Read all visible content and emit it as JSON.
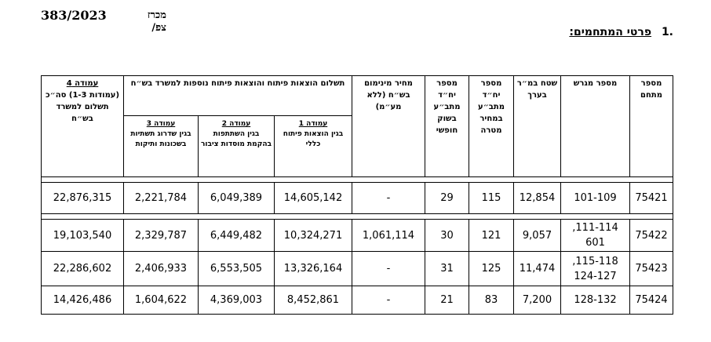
{
  "header": {
    "tender_number": "383/2023",
    "tender_label": "מכרז צפ/"
  },
  "section": {
    "number": "1.",
    "title": "פרטי המתחמים:"
  },
  "table": {
    "headers": {
      "complex": "מספר מתחם",
      "plots": "מספר מגרש",
      "area": "שטח במ״ר בערך",
      "units_target": "מספר יח״ד מתב״ע במחיר מטרה",
      "units_free": "מספר יח״ד מתב״ע בשוק חופשי",
      "min_price": "מחיר מינימום בש״ח (ללא מע״מ)",
      "payment_group": "תשלום הוצאות פיתוח והוצאות פיתוח נוספות למשרד בש״ח",
      "col1_title": "עמודה 1",
      "col1_desc": "בגין הוצאות פיתוח כללי",
      "col2_title": "עמודה 2",
      "col2_desc": "בגין השתתפות בהקמת מוסדות ציבור",
      "col3_title": "עמודה 3",
      "col3_desc": "בגין שדרוג תשתיות בשכונות ותיקות",
      "col4_title": "עמודה 4",
      "col4_desc": "(עמודות 1-3) סה״כ תשלום למשרד בש״ח"
    },
    "rows": [
      {
        "complex": "75421",
        "plots": "101-109",
        "area": "12,854",
        "units_target": "115",
        "units_free": "29",
        "min_price": "-",
        "col1": "14,605,142",
        "col2": "6,049,389",
        "col3": "2,221,784",
        "col4": "22,876,315"
      },
      {
        "complex": "75422",
        "plots": "111-114, 601",
        "area": "9,057",
        "units_target": "121",
        "units_free": "30",
        "min_price": "1,061,114",
        "col1": "10,324,271",
        "col2": "6,449,482",
        "col3": "2,329,787",
        "col4": "19,103,540"
      },
      {
        "complex": "75423",
        "plots": "115-118, 124-127",
        "area": "11,474",
        "units_target": "125",
        "units_free": "31",
        "min_price": "-",
        "col1": "13,326,164",
        "col2": "6,553,505",
        "col3": "2,406,933",
        "col4": "22,286,602"
      },
      {
        "complex": "75424",
        "plots": "128-132",
        "area": "7,200",
        "units_target": "83",
        "units_free": "21",
        "min_price": "-",
        "col1": "8,452,861",
        "col2": "4,369,003",
        "col3": "1,604,622",
        "col4": "14,426,486"
      }
    ]
  }
}
